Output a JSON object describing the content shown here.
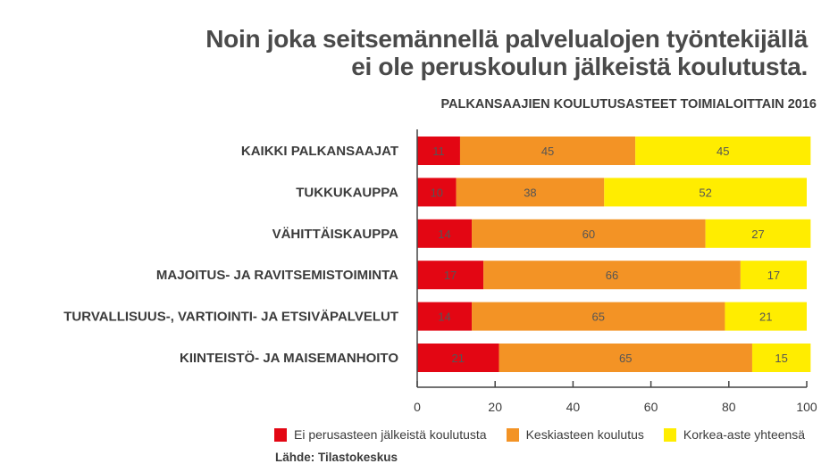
{
  "header": {
    "title_line1": "Noin joka seitsemännellä palvelualojen työntekijällä",
    "title_line2": "ei ole peruskoulun jälkeistä koulutusta."
  },
  "source": "Lähde: Tilastokeskus",
  "chart_data": {
    "type": "bar",
    "orientation": "horizontal",
    "stacked": true,
    "title": "PALKANSAAJIEN KOULUTUSASTEET TOIMIALOITTAIN 2016",
    "categories": [
      "KAIKKI PALKANSAAJAT",
      "TUKKUKAUPPA",
      "VÄHITTÄISKAUPPA",
      "MAJOITUS- JA RAVITSEMISTOIMINTA",
      "TURVALLISUUS-, VARTIOINTI- JA ETSIVÄPALVELUT",
      "KIINTEISTÖ- JA MAISEMANHOITO"
    ],
    "series": [
      {
        "name": "Ei perusasteen jälkeistä koulutusta",
        "color": "#e30613",
        "values": [
          11,
          10,
          14,
          17,
          14,
          21
        ]
      },
      {
        "name": "Keskiasteen koulutus",
        "color": "#f39325",
        "values": [
          45,
          38,
          60,
          66,
          65,
          65
        ]
      },
      {
        "name": "Korkea-aste yhteensä",
        "color": "#ffed00",
        "values": [
          45,
          52,
          27,
          17,
          21,
          15
        ]
      }
    ],
    "xlim": [
      0,
      100
    ],
    "xticks": [
      0,
      20,
      40,
      60,
      80,
      100
    ],
    "grid": false,
    "legend_position": "bottom"
  }
}
